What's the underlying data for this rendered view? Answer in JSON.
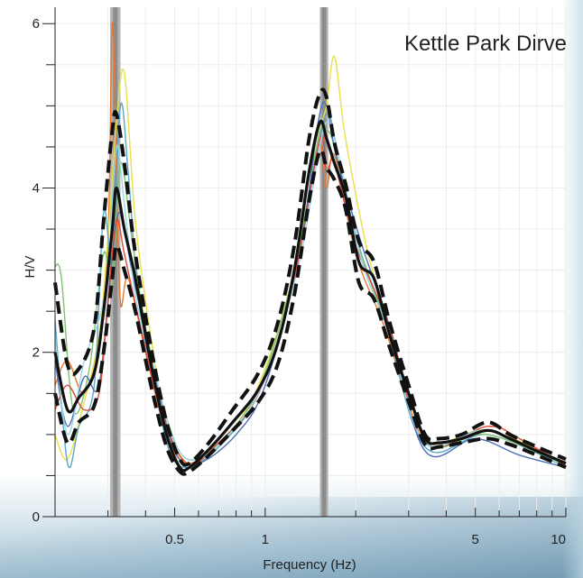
{
  "chart_data": {
    "type": "line",
    "title": "Kettle Park Dirve",
    "xlabel": "Frequency (Hz)",
    "ylabel": "H/V",
    "xscale": "log",
    "xlim": [
      0.2,
      10
    ],
    "ylim": [
      0,
      6.2
    ],
    "yticks": [
      0,
      2,
      4,
      6
    ],
    "ytick_labels": [
      "0",
      "2",
      "4",
      "6"
    ],
    "xticks": [
      0.5,
      1,
      5,
      10
    ],
    "xtick_labels": [
      "0.5",
      "1",
      "5",
      "10"
    ],
    "grid": true,
    "legend": "none",
    "peak_bands": [
      {
        "x0": 0.305,
        "x1": 0.33
      },
      {
        "x0": 1.52,
        "x1": 1.62
      }
    ],
    "series": [
      {
        "role": "mean",
        "color": "#111111",
        "x": [
          0.2,
          0.22,
          0.24,
          0.27,
          0.29,
          0.31,
          0.32,
          0.34,
          0.37,
          0.42,
          0.47,
          0.52,
          0.56,
          0.65,
          0.78,
          0.95,
          1.1,
          1.25,
          1.4,
          1.52,
          1.6,
          1.7,
          1.85,
          2.05,
          2.3,
          2.6,
          3.0,
          3.4,
          3.8,
          4.5,
          5.5,
          6.5,
          8.0,
          10
        ],
        "values": [
          2.0,
          1.3,
          1.45,
          1.75,
          2.5,
          3.5,
          4.0,
          3.5,
          2.9,
          1.8,
          1.0,
          0.6,
          0.6,
          0.82,
          1.15,
          1.55,
          2.1,
          3.0,
          4.2,
          4.8,
          4.6,
          4.3,
          3.9,
          3.1,
          2.9,
          2.2,
          1.5,
          0.95,
          0.9,
          0.95,
          1.05,
          0.95,
          0.8,
          0.65
        ]
      },
      {
        "role": "upper",
        "color": "#111111",
        "x": [
          0.2,
          0.22,
          0.24,
          0.27,
          0.29,
          0.31,
          0.32,
          0.34,
          0.37,
          0.42,
          0.47,
          0.52,
          0.56,
          0.65,
          0.78,
          0.95,
          1.1,
          1.25,
          1.4,
          1.52,
          1.6,
          1.7,
          1.85,
          2.05,
          2.3,
          2.6,
          3.0,
          3.4,
          3.8,
          4.5,
          5.5,
          6.5,
          8.0,
          10
        ],
        "values": [
          2.85,
          1.85,
          1.8,
          2.3,
          3.6,
          4.7,
          4.9,
          4.3,
          3.2,
          2.0,
          1.15,
          0.7,
          0.65,
          0.9,
          1.3,
          1.75,
          2.35,
          3.3,
          4.6,
          5.15,
          5.1,
          4.55,
          4.05,
          3.35,
          3.1,
          2.35,
          1.6,
          1.0,
          0.95,
          1.0,
          1.15,
          1.0,
          0.85,
          0.7
        ]
      },
      {
        "role": "lower",
        "color": "#111111",
        "x": [
          0.2,
          0.22,
          0.24,
          0.27,
          0.29,
          0.31,
          0.32,
          0.34,
          0.37,
          0.42,
          0.47,
          0.52,
          0.56,
          0.65,
          0.78,
          0.95,
          1.1,
          1.25,
          1.4,
          1.52,
          1.6,
          1.7,
          1.85,
          2.05,
          2.3,
          2.6,
          3.0,
          3.4,
          3.8,
          4.5,
          5.5,
          6.5,
          8.0,
          10
        ],
        "values": [
          1.5,
          0.9,
          1.15,
          1.35,
          2.0,
          2.9,
          3.3,
          3.0,
          2.5,
          1.55,
          0.85,
          0.55,
          0.55,
          0.75,
          1.05,
          1.4,
          1.85,
          2.7,
          3.85,
          4.45,
          4.25,
          4.1,
          3.75,
          2.85,
          2.65,
          2.05,
          1.4,
          0.88,
          0.85,
          0.9,
          0.95,
          0.88,
          0.75,
          0.6
        ]
      },
      {
        "role": "window",
        "color": "#e8772e",
        "x": [
          0.2,
          0.22,
          0.25,
          0.28,
          0.3,
          0.31,
          0.32,
          0.33,
          0.35,
          0.4,
          0.47,
          0.55,
          0.7,
          0.95,
          1.25,
          1.5,
          1.6,
          1.7,
          2.0,
          2.5,
          3.4,
          5.5,
          10
        ],
        "values": [
          1.6,
          1.9,
          1.5,
          2.2,
          3.3,
          6.0,
          4.2,
          2.6,
          2.9,
          2.0,
          1.0,
          0.65,
          0.9,
          1.5,
          2.9,
          4.5,
          4.0,
          4.4,
          3.2,
          2.3,
          0.95,
          1.05,
          0.65
        ]
      },
      {
        "role": "window",
        "color": "#e8e04a",
        "x": [
          0.2,
          0.22,
          0.25,
          0.28,
          0.3,
          0.32,
          0.34,
          0.37,
          0.42,
          0.47,
          0.55,
          0.7,
          0.95,
          1.25,
          1.5,
          1.6,
          1.7,
          1.85,
          2.2,
          2.6,
          3.4,
          5.5,
          10
        ],
        "values": [
          1.0,
          0.7,
          1.4,
          2.2,
          3.4,
          4.8,
          5.4,
          3.6,
          2.1,
          1.1,
          0.65,
          0.85,
          1.6,
          3.0,
          4.6,
          5.0,
          5.6,
          4.6,
          3.2,
          2.3,
          0.95,
          1.05,
          0.65
        ]
      },
      {
        "role": "window",
        "color": "#5aa8c8",
        "x": [
          0.2,
          0.22,
          0.24,
          0.27,
          0.29,
          0.31,
          0.33,
          0.35,
          0.38,
          0.43,
          0.48,
          0.55,
          0.7,
          0.95,
          1.25,
          1.5,
          1.62,
          1.75,
          2.05,
          2.5,
          3.4,
          5.5,
          10
        ],
        "values": [
          2.4,
          0.65,
          1.1,
          1.6,
          3.7,
          3.1,
          5.0,
          4.2,
          2.6,
          1.6,
          0.8,
          0.6,
          0.85,
          1.5,
          2.9,
          4.5,
          4.9,
          4.4,
          3.3,
          2.4,
          0.85,
          1.0,
          0.6
        ]
      },
      {
        "role": "window",
        "color": "#7cc36e",
        "x": [
          0.2,
          0.21,
          0.23,
          0.26,
          0.29,
          0.31,
          0.33,
          0.36,
          0.4,
          0.47,
          0.55,
          0.7,
          0.95,
          1.25,
          1.5,
          1.6,
          1.7,
          2.0,
          2.6,
          3.4,
          5.5,
          10
        ],
        "values": [
          3.05,
          2.9,
          1.3,
          1.8,
          3.2,
          2.8,
          4.3,
          3.4,
          2.3,
          1.2,
          0.7,
          0.9,
          1.55,
          3.0,
          4.6,
          4.7,
          4.5,
          3.4,
          2.2,
          0.9,
          1.0,
          0.62
        ]
      },
      {
        "role": "window",
        "color": "#4f6fb5",
        "x": [
          0.2,
          0.22,
          0.25,
          0.28,
          0.31,
          0.33,
          0.36,
          0.42,
          0.5,
          0.6,
          0.8,
          1.0,
          1.3,
          1.5,
          1.6,
          1.72,
          2.1,
          2.6,
          3.4,
          5.0,
          7.0,
          10
        ],
        "values": [
          1.9,
          1.1,
          1.7,
          1.6,
          3.2,
          3.7,
          3.0,
          1.9,
          0.8,
          0.65,
          1.0,
          1.6,
          3.2,
          4.8,
          5.0,
          4.4,
          3.3,
          2.3,
          0.8,
          0.95,
          0.75,
          0.6
        ]
      },
      {
        "role": "window",
        "color": "#d94b3b",
        "x": [
          0.2,
          0.22,
          0.25,
          0.28,
          0.3,
          0.32,
          0.34,
          0.38,
          0.45,
          0.55,
          0.7,
          0.95,
          1.25,
          1.52,
          1.6,
          1.7,
          2.0,
          2.6,
          3.4,
          5.5,
          7.0,
          10
        ],
        "values": [
          1.3,
          1.6,
          1.3,
          1.5,
          2.6,
          3.6,
          3.2,
          2.4,
          1.3,
          0.65,
          0.9,
          1.5,
          2.9,
          4.6,
          4.2,
          4.3,
          3.3,
          2.3,
          0.9,
          1.1,
          0.95,
          0.62
        ]
      },
      {
        "role": "window",
        "color": "#9fd6e6",
        "x": [
          0.2,
          0.22,
          0.25,
          0.28,
          0.3,
          0.32,
          0.34,
          0.37,
          0.42,
          0.5,
          0.6,
          0.8,
          1.0,
          1.3,
          1.5,
          1.62,
          1.8,
          2.1,
          2.6,
          3.4,
          5.5,
          10
        ],
        "values": [
          2.2,
          1.0,
          1.9,
          2.4,
          3.0,
          4.5,
          3.8,
          2.7,
          1.9,
          0.9,
          0.7,
          1.1,
          1.7,
          3.1,
          4.4,
          4.8,
          4.2,
          3.1,
          2.2,
          0.9,
          1.05,
          0.6
        ]
      }
    ]
  }
}
